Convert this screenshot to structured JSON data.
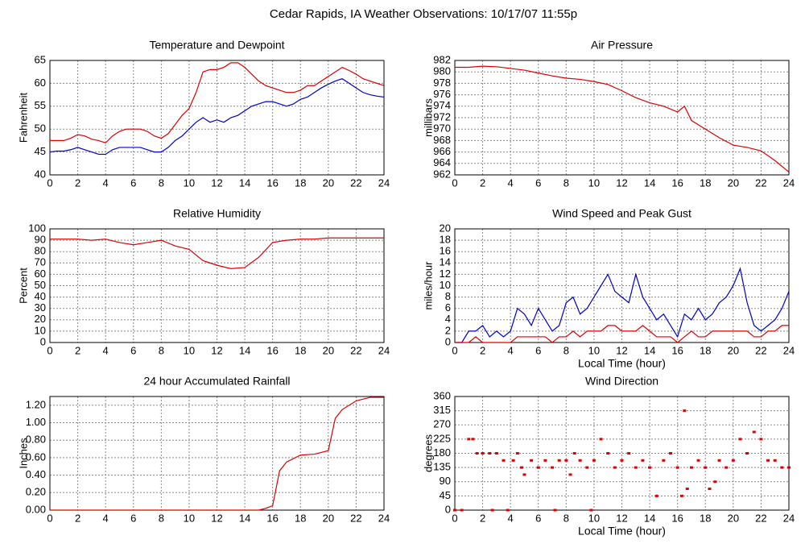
{
  "title": "Cedar Rapids, IA Weather Observations: 10/17/07 11:55p",
  "chart_data": [
    {
      "type": "line",
      "title": "Temperature and Dewpoint",
      "y_label": "Fahrenheit",
      "x": [
        0,
        0.5,
        1,
        1.5,
        2,
        2.5,
        3,
        3.5,
        4,
        4.5,
        5,
        5.5,
        6,
        6.5,
        7,
        7.5,
        8,
        8.5,
        9,
        9.5,
        10,
        10.5,
        11,
        11.5,
        12,
        12.5,
        13,
        13.5,
        14,
        14.5,
        15,
        15.5,
        16,
        16.5,
        17,
        17.5,
        18,
        18.5,
        19,
        19.5,
        20,
        20.5,
        21,
        21.5,
        22,
        22.5,
        23,
        23.5,
        24
      ],
      "series": [
        {
          "color": "#dd0000",
          "values": [
            47.5,
            47.5,
            47.5,
            48,
            48.8,
            48.5,
            47.8,
            47.5,
            47,
            48.5,
            49.5,
            50,
            50,
            50,
            49.5,
            48.5,
            48,
            49,
            51,
            53,
            54.5,
            58,
            62.5,
            63,
            63,
            63.5,
            64.5,
            64.5,
            63.5,
            62,
            60.5,
            59.5,
            59,
            58.5,
            58,
            58,
            58.5,
            59.5,
            59.5,
            60.5,
            61.5,
            62.5,
            63.5,
            62.8,
            62,
            61,
            60.5,
            60,
            59.5
          ]
        },
        {
          "color": "#0000cc",
          "values": [
            45,
            45.2,
            45.2,
            45.5,
            46,
            45.5,
            45,
            44.5,
            44.5,
            45.5,
            46,
            46,
            46,
            46,
            45.5,
            45,
            45,
            46,
            47.5,
            48.5,
            50,
            51.5,
            52.5,
            51.5,
            52,
            51.5,
            52.5,
            53,
            54,
            55,
            55.5,
            56,
            56,
            55.5,
            55,
            55.5,
            56.5,
            57,
            58,
            59,
            59.8,
            60.5,
            61,
            60,
            59,
            58,
            57.5,
            57.2,
            57
          ]
        }
      ],
      "xlim": [
        0,
        24
      ],
      "xticks": [
        0,
        2,
        4,
        6,
        8,
        10,
        12,
        14,
        16,
        18,
        20,
        22,
        24
      ],
      "ylim": [
        40,
        65
      ],
      "yticks": [
        40,
        45,
        50,
        55,
        60,
        65
      ],
      "grid": true
    },
    {
      "type": "line",
      "title": "Air Pressure",
      "y_label": "millibars",
      "x": [
        0,
        1,
        2,
        3,
        4,
        5,
        6,
        7,
        8,
        9,
        10,
        11,
        12,
        13,
        14,
        15,
        16,
        16.5,
        17,
        18,
        19,
        20,
        21,
        22,
        23,
        24
      ],
      "series": [
        {
          "color": "#dd0000",
          "values": [
            980.8,
            980.8,
            981,
            980.9,
            980.6,
            980.3,
            979.8,
            979.3,
            978.9,
            978.7,
            978.3,
            977.8,
            976.7,
            975.5,
            974.6,
            974,
            973,
            974,
            971.5,
            970,
            968.5,
            967.2,
            966.8,
            966.2,
            964.5,
            962.5
          ]
        }
      ],
      "xlim": [
        0,
        24
      ],
      "xticks": [
        0,
        2,
        4,
        6,
        8,
        10,
        12,
        14,
        16,
        18,
        20,
        22,
        24
      ],
      "ylim": [
        962,
        982
      ],
      "yticks": [
        962,
        964,
        966,
        968,
        970,
        972,
        974,
        976,
        978,
        980,
        982
      ],
      "grid": true
    },
    {
      "type": "line",
      "title": "Relative Humidity",
      "y_label": "Percent",
      "x": [
        0,
        1,
        2,
        3,
        4,
        5,
        6,
        7,
        8,
        9,
        10,
        11,
        12,
        13,
        14,
        15,
        16,
        17,
        18,
        19,
        20,
        21,
        22,
        23,
        24
      ],
      "series": [
        {
          "color": "#dd0000",
          "values": [
            91,
            91,
            91,
            90,
            91,
            88,
            86,
            88,
            90,
            85,
            82,
            72,
            68,
            65,
            66,
            75,
            88,
            90,
            91,
            91,
            92,
            92,
            92,
            92,
            92
          ]
        }
      ],
      "xlim": [
        0,
        24
      ],
      "xticks": [
        0,
        2,
        4,
        6,
        8,
        10,
        12,
        14,
        16,
        18,
        20,
        22,
        24
      ],
      "ylim": [
        0,
        100
      ],
      "yticks": [
        0,
        10,
        20,
        30,
        40,
        50,
        60,
        70,
        80,
        90,
        100
      ],
      "grid": true
    },
    {
      "type": "line",
      "title": "Wind Speed and Peak Gust",
      "y_label": "miles/hour",
      "x_label": "Local Time (hour)",
      "x": [
        0,
        0.5,
        1,
        1.5,
        2,
        2.5,
        3,
        3.5,
        4,
        4.5,
        5,
        5.5,
        6,
        6.5,
        7,
        7.5,
        8,
        8.5,
        9,
        9.5,
        10,
        10.5,
        11,
        11.5,
        12,
        12.5,
        13,
        13.5,
        14,
        14.5,
        15,
        15.5,
        16,
        16.5,
        17,
        17.5,
        18,
        18.5,
        19,
        19.5,
        20,
        20.5,
        21,
        21.5,
        22,
        22.5,
        23,
        23.5,
        24
      ],
      "series": [
        {
          "color": "#0000cc",
          "values": [
            0,
            0,
            2,
            2,
            3,
            1,
            2,
            1,
            2,
            6,
            5,
            3,
            6,
            4,
            2,
            3,
            7,
            8,
            5,
            6,
            8,
            10,
            12,
            9,
            8,
            7,
            12,
            8,
            6,
            4,
            5,
            3,
            1,
            5,
            4,
            6,
            4,
            5,
            7,
            8,
            10,
            13,
            7,
            3,
            2,
            3,
            4,
            6,
            9
          ]
        },
        {
          "color": "#dd0000",
          "values": [
            0,
            0,
            0,
            1,
            0,
            0,
            0,
            0,
            0,
            1,
            1,
            1,
            1,
            1,
            0,
            1,
            1,
            2,
            1,
            2,
            2,
            2,
            3,
            3,
            2,
            2,
            2,
            3,
            2,
            1,
            1,
            1,
            0,
            1,
            2,
            1,
            1,
            2,
            2,
            2,
            2,
            2,
            2,
            1,
            1,
            2,
            2,
            3,
            3
          ]
        }
      ],
      "xlim": [
        0,
        24
      ],
      "xticks": [
        0,
        2,
        4,
        6,
        8,
        10,
        12,
        14,
        16,
        18,
        20,
        22,
        24
      ],
      "ylim": [
        0,
        20
      ],
      "yticks": [
        0,
        2,
        4,
        6,
        8,
        10,
        12,
        14,
        16,
        18,
        20
      ],
      "grid": true
    },
    {
      "type": "line",
      "title": "24 hour Accumulated Rainfall",
      "y_label": "Inches",
      "x": [
        0,
        2,
        4,
        6,
        8,
        10,
        12,
        14,
        15,
        15.5,
        16,
        16.5,
        17,
        18,
        19,
        20,
        20.5,
        21,
        22,
        23,
        24
      ],
      "series": [
        {
          "color": "#dd0000",
          "values": [
            0,
            0,
            0,
            0,
            0,
            0,
            0,
            0,
            0,
            0.02,
            0.05,
            0.45,
            0.55,
            0.63,
            0.64,
            0.68,
            1.05,
            1.15,
            1.25,
            1.29,
            1.29
          ]
        }
      ],
      "xlim": [
        0,
        24
      ],
      "xticks": [
        0,
        2,
        4,
        6,
        8,
        10,
        12,
        14,
        16,
        18,
        20,
        22,
        24
      ],
      "ylim": [
        0,
        1.3
      ],
      "yticks": [
        {
          "value": 0,
          "label": "0.00"
        },
        {
          "value": 0.2,
          "label": "0.20"
        },
        {
          "value": 0.4,
          "label": "0.40"
        },
        {
          "value": 0.6,
          "label": "0.60"
        },
        {
          "value": 0.8,
          "label": "0.80"
        },
        {
          "value": 1,
          "label": "1.00"
        },
        {
          "value": 1.2,
          "label": "1.20"
        }
      ],
      "grid": true
    },
    {
      "type": "scatter",
      "title": "Wind Direction",
      "y_label": "degrees",
      "x_label": "Local Time (hour)",
      "x": [
        0,
        0.5,
        1,
        1.3,
        1.6,
        2,
        2.5,
        2.7,
        3,
        3.5,
        3.8,
        4.2,
        4.5,
        4.8,
        5,
        5.5,
        6,
        6.5,
        7,
        7.2,
        7.5,
        8,
        8.3,
        8.6,
        9,
        9.5,
        9.8,
        10,
        10.5,
        11,
        11.5,
        12,
        12.5,
        13,
        13.5,
        14,
        14.5,
        15,
        15.5,
        16,
        16.3,
        16.5,
        16.7,
        17,
        17.5,
        18,
        18.3,
        18.7,
        19,
        19.5,
        20,
        20.5,
        21,
        21.5,
        22,
        22.5,
        23,
        23.5,
        24
      ],
      "values": [
        0,
        0,
        225,
        225,
        180,
        180,
        180,
        0,
        180,
        157.5,
        0,
        157.5,
        180,
        135,
        112.5,
        157.5,
        135,
        157.5,
        135,
        0,
        157.5,
        157.5,
        112.5,
        180,
        157.5,
        135,
        0,
        157.5,
        225,
        180,
        135,
        157.5,
        180,
        135,
        157.5,
        135,
        45,
        157.5,
        180,
        135,
        45,
        315,
        67.5,
        135,
        157.5,
        135,
        67.5,
        90,
        157.5,
        135,
        157.5,
        225,
        180,
        247.5,
        225,
        157.5,
        157.5,
        135,
        135
      ],
      "color": "#dd0000",
      "xlim": [
        0,
        24
      ],
      "xticks": [
        0,
        2,
        4,
        6,
        8,
        10,
        12,
        14,
        16,
        18,
        20,
        22,
        24
      ],
      "ylim": [
        0,
        360
      ],
      "yticks": [
        0,
        45,
        90,
        135,
        180,
        225,
        270,
        315,
        360
      ],
      "grid": true
    }
  ]
}
